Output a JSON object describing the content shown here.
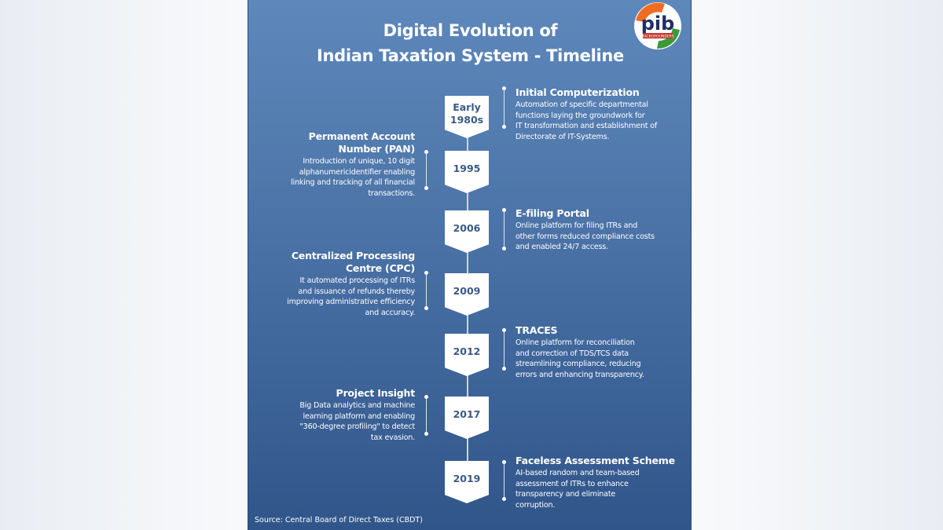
{
  "title": {
    "line1": "Digital Evolution of",
    "line2": "Indian Taxation System - Timeline"
  },
  "logo": {
    "text": "pib",
    "subtext": "BACKGROUNDERS",
    "colors": {
      "saffron": "#f26b22",
      "green": "#3a9a3a",
      "navy": "#1f2f66"
    }
  },
  "events": [
    {
      "year": "Early\n1980s",
      "side": "right",
      "title": "Initial Computerization",
      "desc": "Automation of specific departmental\nfunctions laying the groundwork for\nIT transformation and establishment of\nDirectorate of IT-Systems."
    },
    {
      "year": "1995",
      "side": "left",
      "title": "Permanent Account\nNumber (PAN)",
      "desc": "Introduction of unique, 10 digit\nalphanumericidentifier enabling\nlinking and tracking of all financial\ntransactions."
    },
    {
      "year": "2006",
      "side": "right",
      "title": "E-filing Portal",
      "desc": "Online platform for filing ITRs and\nother forms reduced compliance costs\nand enabled 24/7 access."
    },
    {
      "year": "2009",
      "side": "left",
      "title": "Centralized Processing\nCentre (CPC)",
      "desc": "It automated processing of ITRs\nand issuance of refunds thereby\nimproving administrative efficiency\nand accuracy."
    },
    {
      "year": "2012",
      "side": "right",
      "title": "TRACES",
      "desc": "Online platform for reconciliation\nand correction of TDS/TCS data\nstreamlining compliance, reducing\nerrors and enhancing transparency."
    },
    {
      "year": "2017",
      "side": "left",
      "title": "Project Insight",
      "desc": "Big Data analytics and machine\nlearning platform and enabling\n\"360-degree profiling\" to detect\ntax evasion."
    },
    {
      "year": "2019",
      "side": "right",
      "title": "Faceless Assessment Scheme",
      "desc": "AI-based random and team-based\nassessment of ITRs to enhance\ntransparency and eliminate\ncorruption."
    }
  ],
  "source": "Source: Central Board of Direct Taxes (CBDT)"
}
